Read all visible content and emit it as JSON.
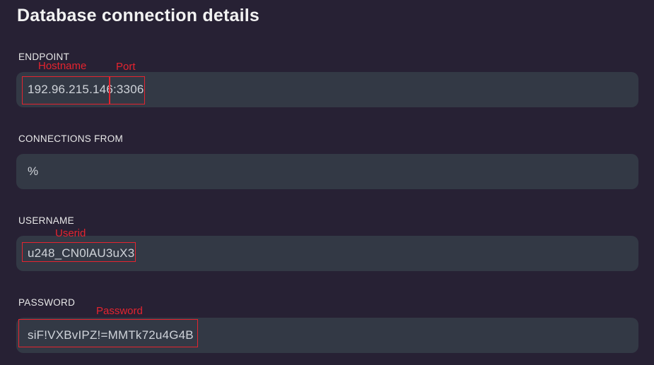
{
  "header": {
    "title": "Database connection details"
  },
  "form": {
    "endpoint": {
      "label": "ENDPOINT",
      "value": "192.96.215.146:3306",
      "hostname": "192.96.215.146",
      "port": "3306"
    },
    "connections_from": {
      "label": "CONNECTIONS FROM",
      "value": "%"
    },
    "username": {
      "label": "USERNAME",
      "value": "u248_CN0lAU3uX3"
    },
    "password": {
      "label": "PASSWORD",
      "value": "siF!VXBvIPZ!=MMTk72u4G4B"
    }
  },
  "annotations": {
    "hostname_label": "Hostname",
    "port_label": "Port",
    "userid_label": "Userid",
    "password_label": "Password"
  },
  "colors": {
    "page_background": "#272134",
    "field_background": "#333945",
    "title_text": "#f2f2f2",
    "label_text": "#e9e9e9",
    "value_text": "#cfd3d9",
    "annotation_red": "#e5242f"
  }
}
